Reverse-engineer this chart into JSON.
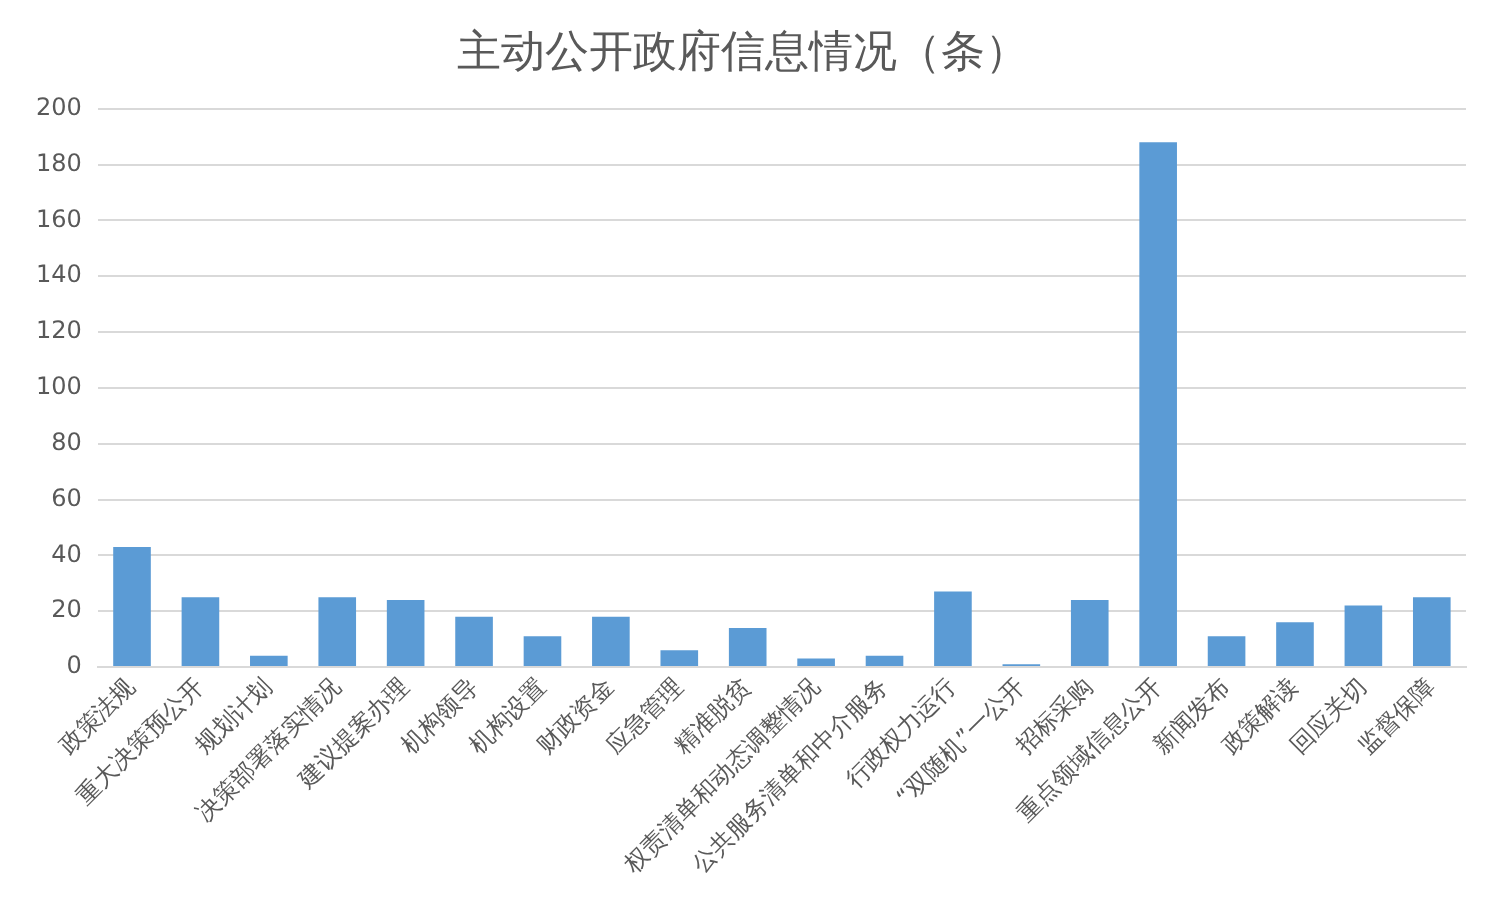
{
  "chart_data": {
    "type": "bar",
    "title": "主动公开政府信息情况（条）",
    "categories": [
      "政策法规",
      "重大决策预公开",
      "规划计划",
      "决策部署落实情况",
      "建议提案办理",
      "机构领导",
      "机构设置",
      "财政资金",
      "应急管理",
      "精准脱贫",
      "权责清单和动态调整情况",
      "公共服务清单和中介服务",
      "行政权力运行",
      "“双随机”一公开",
      "招标采购",
      "重点领域信息公开",
      "新闻发布",
      "政策解读",
      "回应关切",
      "监督保障"
    ],
    "values": [
      43,
      25,
      4,
      25,
      24,
      18,
      11,
      18,
      6,
      14,
      3,
      4,
      27,
      1,
      24,
      188,
      11,
      16,
      22,
      25
    ],
    "color": "#5b9bd5",
    "ylim": [
      0,
      200
    ],
    "yticks": [
      0,
      20,
      40,
      60,
      80,
      100,
      120,
      140,
      160,
      180,
      200
    ],
    "grid": "y",
    "legend": false
  }
}
